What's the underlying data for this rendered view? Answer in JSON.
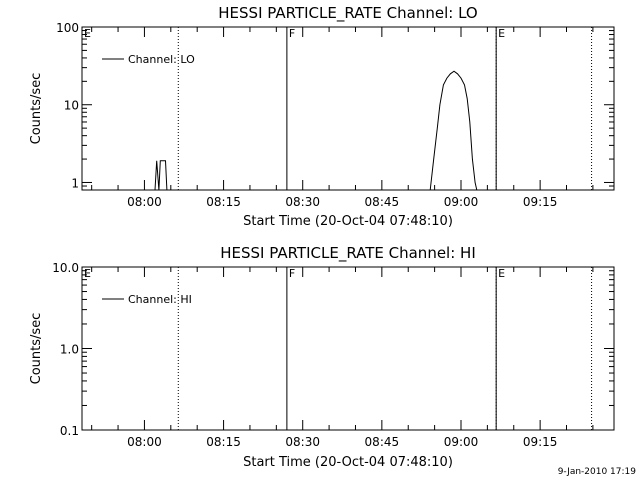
{
  "chart_data": [
    {
      "type": "line",
      "title": "HESSI PARTICLE_RATE Channel: LO",
      "xlabel": "Start Time (20-Oct-04 07:48:10)",
      "ylabel": "Counts/sec",
      "y_scale": "log",
      "ylim": [
        0.8,
        100
      ],
      "xlim": [
        "07:48:10",
        "09:29:00"
      ],
      "y_ticks": [
        {
          "value": 1,
          "label": "1"
        },
        {
          "value": 10,
          "label": "10"
        },
        {
          "value": 100,
          "label": "100"
        }
      ],
      "x_ticks": [
        "08:00",
        "08:15",
        "08:30",
        "08:45",
        "09:00",
        "09:15"
      ],
      "legend": {
        "label": "Channel: LO",
        "placement": "top-left"
      },
      "markers": [
        {
          "label": "E",
          "time": "07:48:10",
          "style": "none"
        },
        {
          "label": "",
          "time": "08:06:25",
          "style": "dotted"
        },
        {
          "label": "F",
          "time": "08:27:00",
          "style": "solid"
        },
        {
          "label": "",
          "time": "09:06:40",
          "style": "dotted"
        },
        {
          "label": "E",
          "time": "09:06:40",
          "style": "solid"
        },
        {
          "label": "",
          "time": "09:24:45",
          "style": "dotted"
        }
      ],
      "series": [
        {
          "name": "Channel: LO",
          "points": [
            [
              "08:02:00",
              0.8
            ],
            [
              "08:02:20",
              1.9
            ],
            [
              "08:02:45",
              0.8
            ],
            [
              "08:03:00",
              1.9
            ],
            [
              "08:04:00",
              1.9
            ],
            [
              "08:04:15",
              0.8
            ],
            [
              "08:54:10",
              0.8
            ],
            [
              "08:54:50",
              2.0
            ],
            [
              "08:55:30",
              5.0
            ],
            [
              "08:56:00",
              10.0
            ],
            [
              "08:56:40",
              18.0
            ],
            [
              "08:57:20",
              22.0
            ],
            [
              "08:58:00",
              25.0
            ],
            [
              "08:58:40",
              27.0
            ],
            [
              "08:59:20",
              25.0
            ],
            [
              "09:00:00",
              22.0
            ],
            [
              "09:00:40",
              18.0
            ],
            [
              "09:01:10",
              12.0
            ],
            [
              "09:01:40",
              6.0
            ],
            [
              "09:02:10",
              2.0
            ],
            [
              "09:02:40",
              1.0
            ],
            [
              "09:03:00",
              0.8
            ]
          ]
        }
      ]
    },
    {
      "type": "line",
      "title": "HESSI PARTICLE_RATE Channel: HI",
      "xlabel": "Start Time (20-Oct-04 07:48:10)",
      "ylabel": "Counts/sec",
      "y_scale": "log",
      "ylim": [
        0.1,
        10
      ],
      "xlim": [
        "07:48:10",
        "09:29:00"
      ],
      "y_ticks": [
        {
          "value": 0.1,
          "label": "0.1"
        },
        {
          "value": 1,
          "label": "1.0"
        },
        {
          "value": 10,
          "label": "10.0"
        }
      ],
      "x_ticks": [
        "08:00",
        "08:15",
        "08:30",
        "08:45",
        "09:00",
        "09:15"
      ],
      "legend": {
        "label": "Channel: HI",
        "placement": "top-left"
      },
      "markers": [
        {
          "label": "E",
          "time": "07:48:10",
          "style": "none"
        },
        {
          "label": "",
          "time": "08:06:25",
          "style": "dotted"
        },
        {
          "label": "F",
          "time": "08:27:00",
          "style": "solid"
        },
        {
          "label": "",
          "time": "09:06:40",
          "style": "dotted"
        },
        {
          "label": "E",
          "time": "09:06:40",
          "style": "solid"
        },
        {
          "label": "",
          "time": "09:24:45",
          "style": "dotted"
        }
      ],
      "series": [
        {
          "name": "Channel: HI",
          "points": []
        }
      ]
    }
  ],
  "footer": {
    "timestamp": "9-Jan-2010 17:19"
  },
  "colors": {
    "ink": "#000000",
    "background": "#ffffff"
  }
}
